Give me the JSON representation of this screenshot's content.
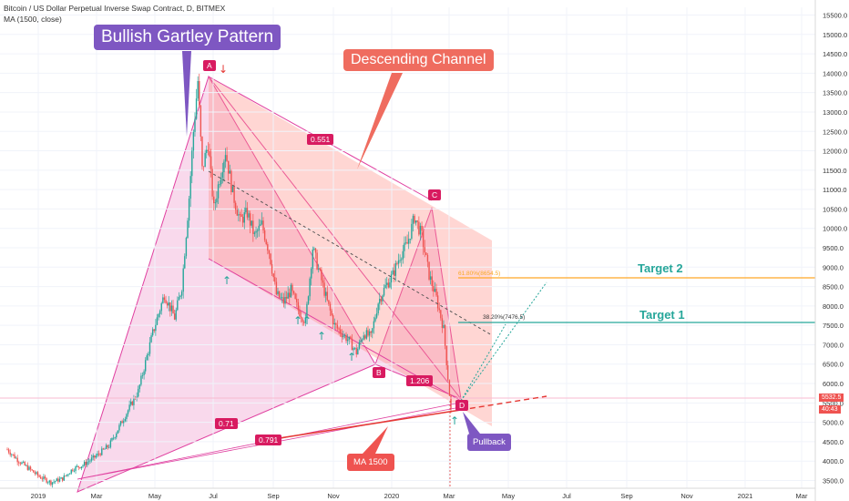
{
  "header": {
    "title": "Bitcoin / US Dollar Perpetual Inverse Swap Contract, D, BITMEX",
    "indicator": "MA (1500, close)"
  },
  "annotations": {
    "pattern_label": "Bullish Gartley Pattern",
    "channel_label": "Descending Channel",
    "target2": "Target 2",
    "target1": "Target 1",
    "pullback": "Pullback",
    "ma_label": "MA 1500",
    "fib_618": "61.80%(8654.5)",
    "fib_382": "38.20%(7476.5)",
    "ratio_xa": "0.551",
    "ratio_b": "1.206",
    "ratio_bottom1": "0.71",
    "ratio_bottom2": "0.791",
    "point_a": "A",
    "point_b": "B",
    "point_c": "C",
    "point_d": "D",
    "price_tag": "5532.5",
    "price_tag2": "40:43"
  },
  "colors": {
    "up": "#26a69a",
    "down": "#ef5350",
    "gartley": "#e040a0",
    "channel": "#ff8a80",
    "target2_line": "#ffa726",
    "target1_line": "#26a69a"
  },
  "chart_data": {
    "type": "candlestick",
    "title": "Bitcoin / US Dollar Perpetual Inverse Swap Contract, D, BITMEX",
    "x_ticks": [
      "2019",
      "Mar",
      "May",
      "Jul",
      "Sep",
      "Nov",
      "2020",
      "Mar",
      "May",
      "Jul",
      "Sep",
      "Nov",
      "2021",
      "Mar"
    ],
    "y_ticks": [
      3500,
      4000,
      4500,
      5000,
      5500,
      6000,
      6500,
      7000,
      7500,
      8000,
      8500,
      9000,
      9500,
      10000,
      10500,
      11000,
      11500,
      12000,
      12500,
      13000,
      13500,
      14000,
      14500,
      15000,
      15500
    ],
    "ylim": [
      3300,
      15700
    ],
    "price_path": [
      [
        0,
        4300
      ],
      [
        8,
        4000
      ],
      [
        15,
        3800
      ],
      [
        22,
        3600
      ],
      [
        30,
        3450
      ],
      [
        38,
        3550
      ],
      [
        45,
        3800
      ],
      [
        52,
        3900
      ],
      [
        60,
        4100
      ],
      [
        70,
        4400
      ],
      [
        80,
        5100
      ],
      [
        90,
        5800
      ],
      [
        100,
        7300
      ],
      [
        108,
        8300
      ],
      [
        115,
        7700
      ],
      [
        120,
        8500
      ],
      [
        125,
        10800
      ],
      [
        128,
        12500
      ],
      [
        131,
        13800
      ],
      [
        134,
        11500
      ],
      [
        138,
        12200
      ],
      [
        142,
        10500
      ],
      [
        146,
        11300
      ],
      [
        150,
        12000
      ],
      [
        155,
        10900
      ],
      [
        160,
        10200
      ],
      [
        165,
        10400
      ],
      [
        170,
        9800
      ],
      [
        175,
        10100
      ],
      [
        180,
        9400
      ],
      [
        185,
        8300
      ],
      [
        190,
        8100
      ],
      [
        195,
        8400
      ],
      [
        200,
        7900
      ],
      [
        205,
        7600
      ],
      [
        210,
        9500
      ],
      [
        215,
        8800
      ],
      [
        220,
        8100
      ],
      [
        225,
        7500
      ],
      [
        230,
        7300
      ],
      [
        235,
        7100
      ],
      [
        240,
        6800
      ],
      [
        245,
        7300
      ],
      [
        250,
        7200
      ],
      [
        255,
        8100
      ],
      [
        260,
        8500
      ],
      [
        265,
        8800
      ],
      [
        270,
        9300
      ],
      [
        275,
        9600
      ],
      [
        280,
        10300
      ],
      [
        285,
        9800
      ],
      [
        290,
        8800
      ],
      [
        295,
        8200
      ],
      [
        300,
        7400
      ],
      [
        305,
        5300
      ]
    ]
  }
}
